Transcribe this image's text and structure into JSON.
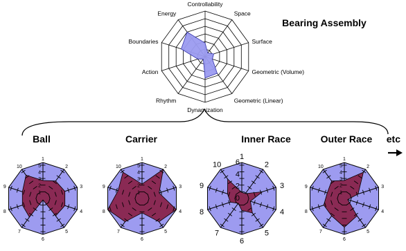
{
  "title": "Bearing Assembly",
  "top_radar": {
    "axes": [
      "Controllability",
      "Space",
      "Surface",
      "Geometric (Volume)",
      "Geometric (Linear)",
      "Dynamization",
      "Rhythm",
      "Action",
      "Boundaries",
      "Energy"
    ],
    "rings": 6,
    "max": 6,
    "values": [
      1.8,
      0.6,
      1.2,
      1.0,
      2.7,
      2.8,
      0.4,
      1.0,
      3.3,
      4.0
    ],
    "fill": "#9b9bf0",
    "grid": "#000000"
  },
  "continuation": {
    "label": "etc",
    "arrow": "right-arrow-icon"
  },
  "colors": {
    "outer": "#9d9bf0",
    "inner": "#8a2a54"
  },
  "small_radars": [
    {
      "title": "Ball",
      "tick_labels": [
        "1",
        "2",
        "3",
        "4",
        "5",
        "6",
        "7",
        "8",
        "9",
        "10"
      ],
      "scale_labels": [
        "1",
        "2",
        "3",
        "4",
        "5"
      ],
      "max": 5,
      "values": [
        2.5,
        3.0,
        3.2,
        3.2,
        3.0,
        0.2,
        3.2,
        3.0,
        3.0,
        4.0
      ]
    },
    {
      "title": "Carrier",
      "tick_labels": [
        "1",
        "2",
        "3",
        "4",
        "5",
        "6",
        "7",
        "8",
        "9",
        "10"
      ],
      "scale_labels": [
        "1",
        "2",
        "3",
        "4",
        "5"
      ],
      "max": 5,
      "values": [
        2.0,
        5.0,
        2.5,
        5.0,
        4.0,
        2.0,
        4.0,
        5.0,
        3.5,
        4.5
      ]
    },
    {
      "title": "Inner Race",
      "tick_labels": [
        "1",
        "2",
        "3",
        "4",
        "5",
        "6",
        "7",
        "8",
        "9",
        "10"
      ],
      "scale_labels": [
        "0",
        "2",
        "4",
        "6"
      ],
      "max": 6,
      "values": [
        1.0,
        1.0,
        3.6,
        1.5,
        3.0,
        2.0,
        1.0,
        2.0,
        2.5,
        4.0
      ]
    },
    {
      "title": "Outer Race",
      "tick_labels": [
        "1",
        "2",
        "3",
        "4",
        "5",
        "6",
        "7",
        "8",
        "9",
        "10"
      ],
      "scale_labels": [
        "1",
        "2",
        "3",
        "4",
        "5"
      ],
      "max": 5,
      "values": [
        2.5,
        4.5,
        2.0,
        0.5,
        3.0,
        4.0,
        3.0,
        3.0,
        2.5,
        3.0
      ]
    }
  ]
}
